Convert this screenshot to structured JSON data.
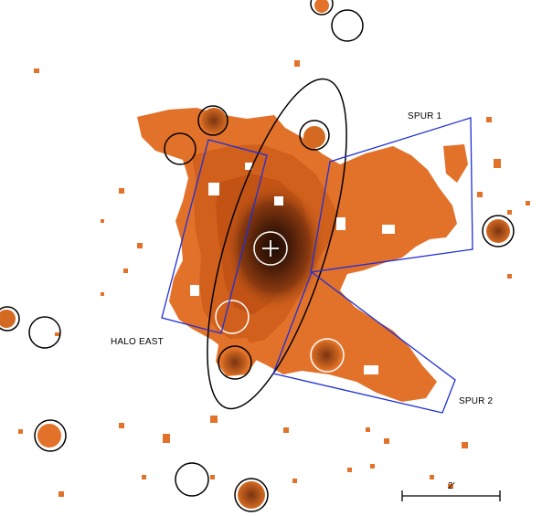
{
  "labels": {
    "spur1": "SPUR 1",
    "spur2": "SPUR 2",
    "halo_east": "HALO EAST",
    "scale_bar": "2'"
  },
  "colors": {
    "background": "#ffffff",
    "emission_faint": "#e8772a",
    "emission_mid": "#c95a16",
    "emission_bright": "#8a3a10",
    "emission_core": "#2a1206",
    "region_box": "#1f2fd6",
    "ellipse": "#000000",
    "source_circle": "#000000",
    "source_circle_on_emission": "#ffffff"
  }
}
